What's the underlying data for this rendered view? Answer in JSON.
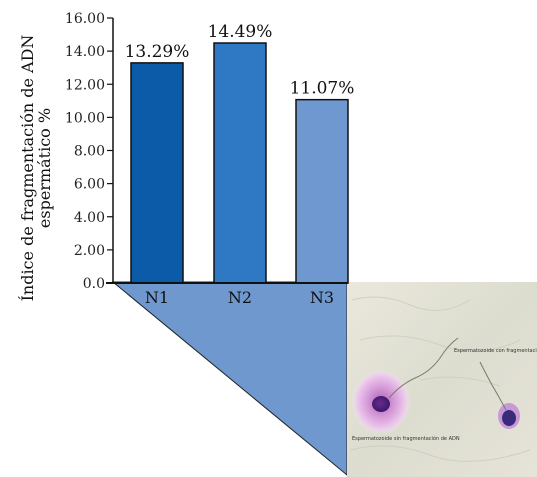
{
  "chart_data": {
    "type": "bar",
    "categories": [
      "N1",
      "N2",
      "N3"
    ],
    "values": [
      13.29,
      14.49,
      11.07
    ],
    "data_labels": [
      "13.29%",
      "14.49%",
      "11.07%"
    ],
    "ylabel_lines": [
      "Índice de fragmentación de ADN",
      "espermático %"
    ],
    "ylim": [
      0,
      16
    ],
    "yticks": [
      "0.0",
      "2.00",
      "4.00",
      "6.00",
      "8.00",
      "10.00",
      "12.00",
      "14.00",
      "16.00"
    ],
    "colors": [
      "#0b5ba8",
      "#2f78c3",
      "#6e98cf"
    ],
    "grid": false,
    "legend": "none"
  },
  "inset": {
    "label_upper": "Espermatozoide con fragmentación de ADN",
    "label_lower": "Espermatozoide sin fragmentación de ADN",
    "triangle_color": "#6f98cf"
  }
}
